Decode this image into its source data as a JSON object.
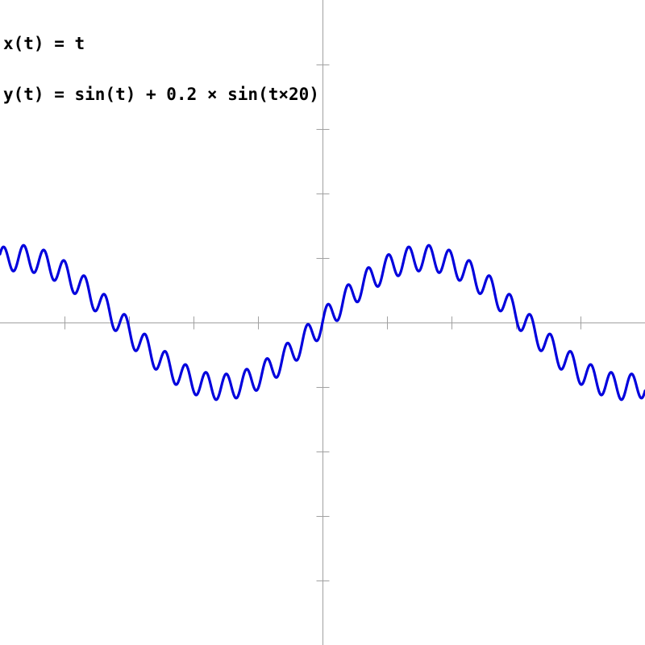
{
  "equations": {
    "x_eq": "x(t) = t",
    "y_eq": "y(t) = sin(t) + 0.2 × sin(t×20)"
  },
  "colors": {
    "curve": "#0000dd",
    "axis": "#a0a0a0",
    "background": "#ffffff"
  },
  "chart_data": {
    "type": "line",
    "title": "",
    "xlabel": "",
    "ylabel": "",
    "xlim": [
      -5,
      5
    ],
    "ylim": [
      -5,
      5
    ],
    "tick_step": 1,
    "grid": false,
    "series": [
      {
        "function": "y = sin(t) + 0.2 * sin(20 t)",
        "t_range": [
          -5,
          5
        ]
      }
    ]
  }
}
